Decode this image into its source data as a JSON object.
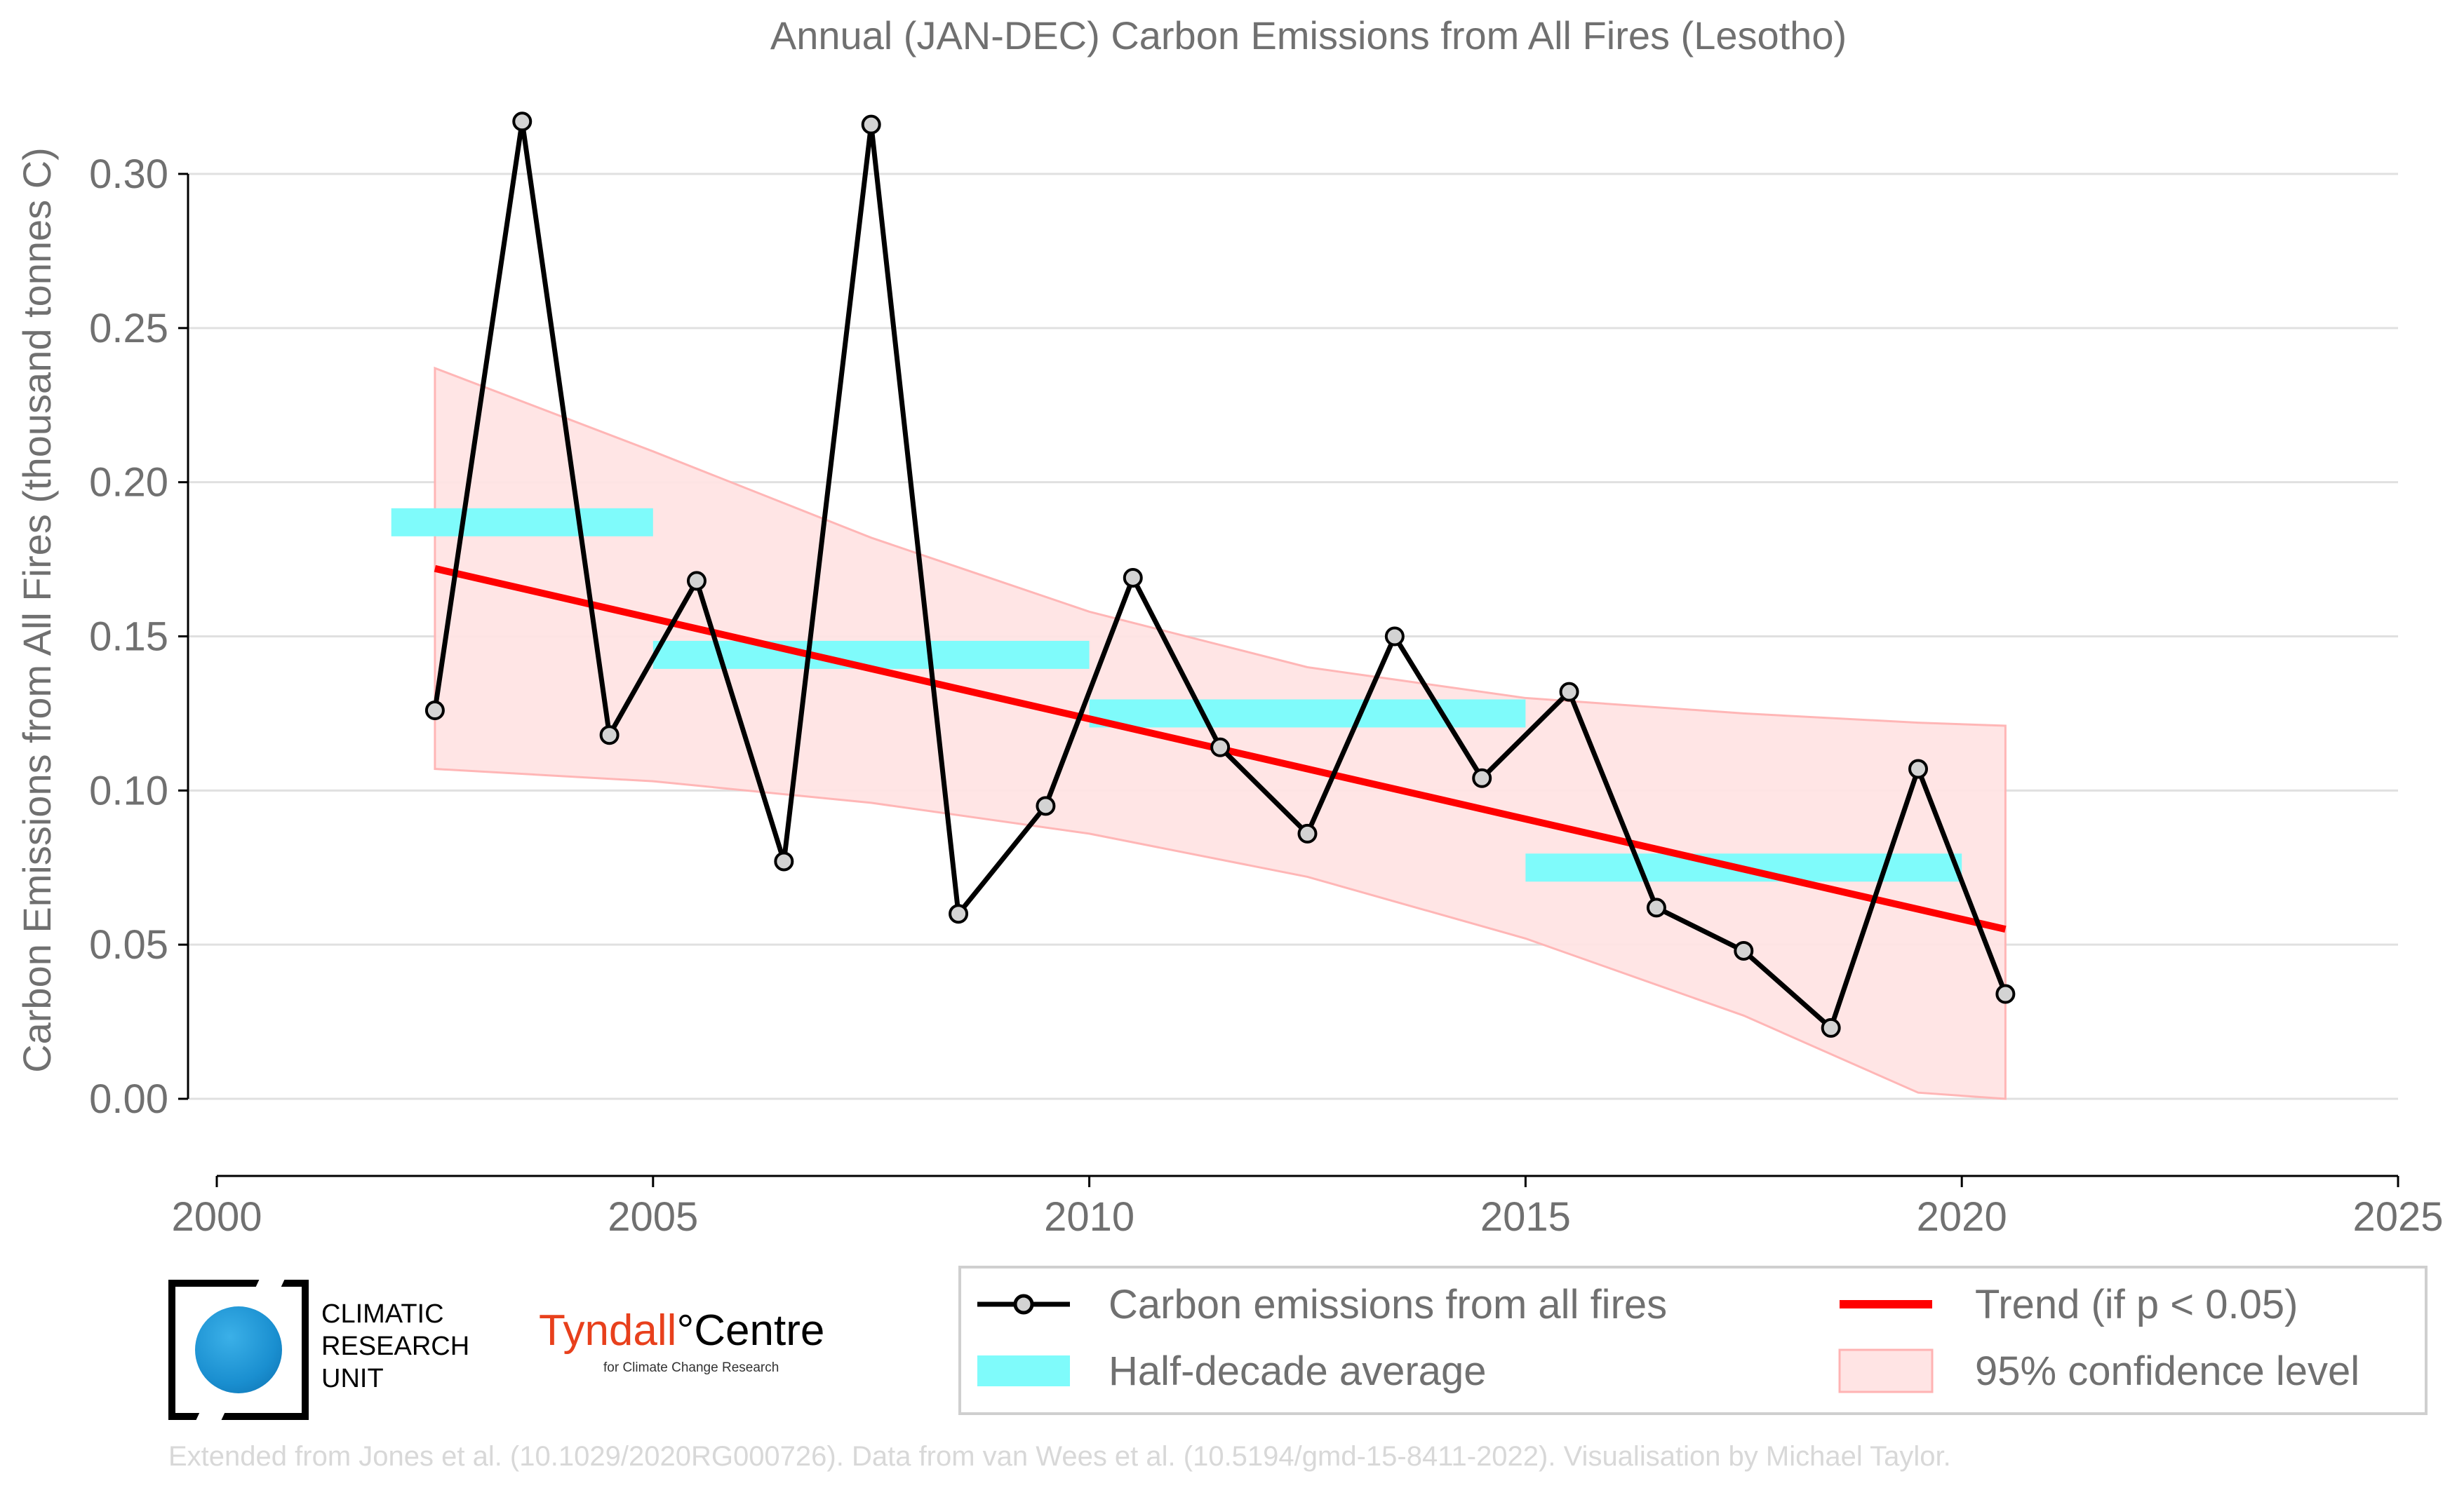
{
  "chart_data": {
    "type": "line",
    "title": "Annual (JAN-DEC) Carbon Emissions from All Fires (Lesotho)",
    "ylabel": "Carbon Emissions from All Fires (thousand tonnes C)",
    "xlabel": "",
    "xlim": [
      2000,
      2025
    ],
    "ylim": [
      -0.025,
      0.325
    ],
    "x_ticks": [
      "2000",
      "2005",
      "2010",
      "2015",
      "2020",
      "2025"
    ],
    "y_ticks": [
      "0.00",
      "0.05",
      "0.10",
      "0.15",
      "0.20",
      "0.25",
      "0.30"
    ],
    "grid": true,
    "series": [
      {
        "name": "Carbon emissions from all fires",
        "type": "line",
        "x": [
          2002.5,
          2003.5,
          2004.5,
          2005.5,
          2006.5,
          2007.5,
          2008.5,
          2009.5,
          2010.5,
          2011.5,
          2012.5,
          2013.5,
          2014.5,
          2015.5,
          2016.5,
          2017.5,
          2018.5,
          2019.5,
          2020.5
        ],
        "values": [
          0.126,
          0.317,
          0.118,
          0.168,
          0.077,
          0.316,
          0.06,
          0.095,
          0.169,
          0.114,
          0.086,
          0.15,
          0.104,
          0.132,
          0.062,
          0.048,
          0.023,
          0.107,
          0.034
        ],
        "color": "#000000",
        "marker_fill": "#d3d3d3"
      },
      {
        "name": "Half-decade average",
        "type": "segments",
        "color": "#7ffbfb",
        "segments": [
          {
            "x0": 2002.0,
            "x1": 2005.0,
            "y": 0.187
          },
          {
            "x0": 2005.0,
            "x1": 2010.0,
            "y": 0.144
          },
          {
            "x0": 2010.0,
            "x1": 2015.0,
            "y": 0.125
          },
          {
            "x0": 2015.0,
            "x1": 2020.0,
            "y": 0.075
          }
        ]
      },
      {
        "name": "Trend (if p < 0.05)",
        "type": "line",
        "x": [
          2002.5,
          2020.5
        ],
        "values": [
          0.172,
          0.055
        ],
        "color": "#ff0000"
      },
      {
        "name": "95% confidence level",
        "type": "band",
        "color": "#ffb3b3",
        "x": [
          2002.5,
          2005.0,
          2007.5,
          2010.0,
          2012.5,
          2015.0,
          2017.5,
          2019.5,
          2020.5
        ],
        "upper": [
          0.237,
          0.21,
          0.182,
          0.158,
          0.14,
          0.13,
          0.125,
          0.122,
          0.121
        ],
        "lower": [
          0.107,
          0.103,
          0.096,
          0.086,
          0.072,
          0.052,
          0.027,
          0.002,
          0.0
        ]
      }
    ],
    "legend": {
      "placement": "bottom-right",
      "entries": [
        "Carbon emissions from all fires",
        "Trend (if p < 0.05)",
        "Half-decade average",
        "95% confidence level"
      ]
    },
    "footer": "Extended from Jones et al. (10.1029/2020RG000726). Data from van Wees et al. (10.5194/gmd-15-8411-2022). Visualisation by Michael Taylor."
  },
  "logos": {
    "cru_lines": [
      "CLIMATIC",
      "RESEARCH",
      "UNIT"
    ],
    "tyndall_name_a": "Tyndall",
    "tyndall_degree": "°",
    "tyndall_name_b": "Centre",
    "tyndall_sub": "for Climate Change Research"
  },
  "colors": {
    "text": "#707070",
    "grid": "#e0e0e0",
    "footer": "#d8d8d8"
  }
}
